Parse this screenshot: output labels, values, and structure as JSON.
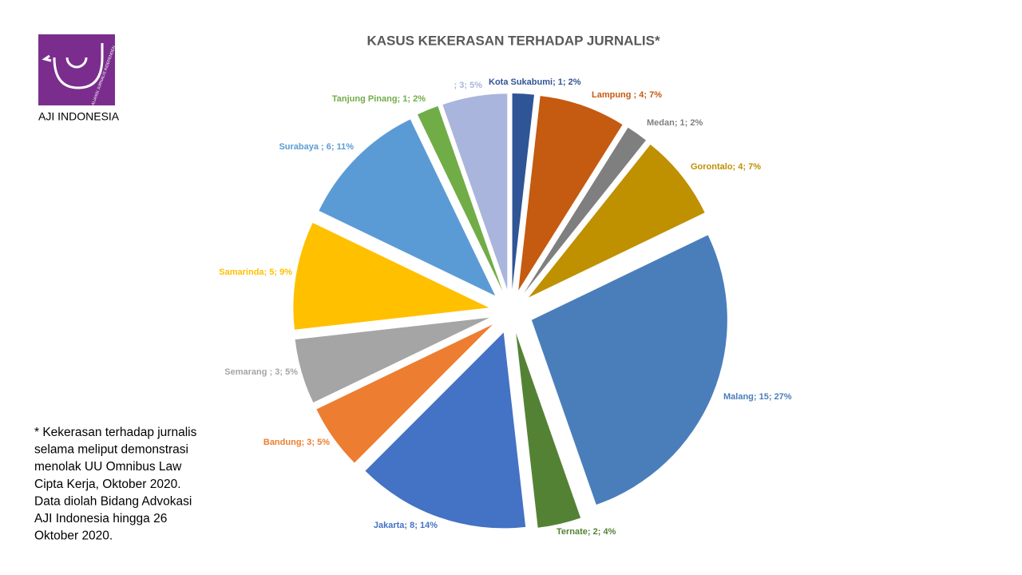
{
  "logo": {
    "name": "AJI INDONESIA",
    "tagline": "ALIANSI JURNALIS INDEPENDEN"
  },
  "note": [
    "* Kekerasan terhadap jurnalis",
    "selama meliput demonstrasi",
    "menolak UU Omnibus Law",
    "Cipta Kerja, Oktober 2020.",
    "Data diolah Bidang Advokasi",
    "AJI Indonesia hingga 26",
    "Oktober 2020."
  ],
  "chart_data": {
    "type": "pie",
    "title": "KASUS KEKERASAN TERHADAP JURNALIS*",
    "categories": [
      "Kota Sukabumi",
      "Lampung",
      "Medan",
      "Gorontalo",
      "Malang",
      "Ternate",
      "Jakarta",
      "Bandung",
      "Semarang",
      "Samarinda",
      "Surabaya",
      "Tanjung Pinang",
      null
    ],
    "values": [
      1,
      4,
      1,
      4,
      15,
      2,
      8,
      3,
      3,
      5,
      6,
      1,
      3
    ],
    "value_labels": [
      "Kota Sukabumi; 1; 2%",
      "Lampung ; 4; 7%",
      "Medan; 1; 2%",
      "Gorontalo; 4; 7%",
      "Malang;  15; 27%",
      "Ternate; 2; 4%",
      "Jakarta;  8; 14%",
      "Bandung;  3; 5%",
      "Semarang ; 3; 5%",
      "Samarinda;  5; 9%",
      "Surabaya ; 6; 11%",
      "Tanjung Pinang; 1; 2%",
      "; 3; 5%"
    ],
    "colors": [
      "#2f5597",
      "#c55a11",
      "#7f7f7f",
      "#bf9000",
      "#4a7ebb",
      "#548235",
      "#4472c4",
      "#ed7d31",
      "#a5a5a5",
      "#ffc000",
      "#5b9bd5",
      "#70ad47",
      "#a9b5dc"
    ]
  }
}
